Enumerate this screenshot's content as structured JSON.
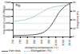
{
  "chart_data": {
    "type": "line",
    "title": "Fig.",
    "xlabel": "Annealing temperature (°C)",
    "ylabel": "Iron loss P₁₀₀₀/50 (W/kg)",
    "y2label": "Elongation (%)",
    "x": [
      700,
      720,
      740,
      760,
      780,
      800,
      820,
      840,
      860,
      880,
      900,
      920,
      940,
      960,
      980,
      1000,
      1020,
      1040,
      1060,
      1080,
      1100
    ],
    "series": [
      {
        "name": "Iron loss",
        "color": "#333333",
        "line_style": "solid",
        "values": [
          200,
          210,
          220,
          230,
          240,
          260,
          280,
          310,
          360,
          430,
          550,
          750,
          1050,
          1500,
          2100,
          2800,
          3500,
          4000,
          4400,
          4700,
          4900
        ]
      },
      {
        "name": "Elongation (%)",
        "color": "#88bbbb",
        "line_style": "dashed",
        "axis": "y2",
        "values": [
          18,
          18.5,
          19,
          19.5,
          20,
          21,
          22,
          23,
          25,
          27,
          29,
          31,
          33,
          34,
          35,
          35.5,
          36,
          36.5,
          37,
          37.5,
          38
        ]
      }
    ],
    "xlim": [
      700,
      1100
    ],
    "xticks": [
      700,
      750,
      800,
      850,
      900,
      950,
      1000,
      1050,
      1100
    ],
    "ylim": [
      0,
      5000
    ],
    "yticks": [
      1000,
      2000,
      3000,
      4000,
      5000
    ],
    "y2lim": [
      0,
      40
    ],
    "y2ticks": [
      0,
      10,
      20,
      30,
      40
    ],
    "grid": true,
    "legend": "bottom"
  }
}
